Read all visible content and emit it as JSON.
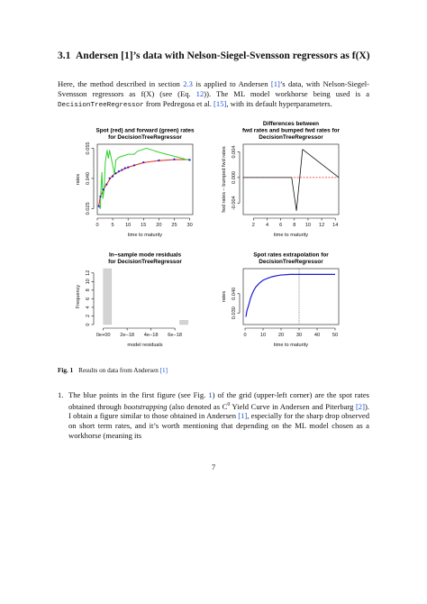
{
  "section": {
    "number": "3.1",
    "title": "Andersen [1]’s data with Nelson-Siegel-Svensson regressors as f(X)"
  },
  "intro": {
    "part1": "Here, the method described in section ",
    "sec_ref": "2.3",
    "part2": " is applied to Andersen ",
    "ref1": "[1]",
    "part3": "’s data, with Nelson-Siegel-Svensson regressors as f(X) (see (Eq. ",
    "eq_ref": "12",
    "part4": ")). The ML model workhorse being used is a ",
    "code": "DecisionTreeRegressor",
    "part5": " from Pedregosa et al. ",
    "ref2": "[15]",
    "part6": ", with its default hyperparameters."
  },
  "colors": {
    "link": "#1a4fd6",
    "red": "#e0231b",
    "green": "#2fd12f",
    "blue": "#1b1bd6",
    "gray": "#d3d3d3"
  },
  "chart_data": [
    {
      "type": "line",
      "title": "Spot (red) and forward (green) rates for DecisionTreeRegressor",
      "title_lines": [
        "Spot (red) and forward (green) rates",
        "for DecisionTreeRegressor"
      ],
      "xlabel": "time to maturity",
      "ylabel": "rates",
      "xlim": [
        0,
        31
      ],
      "ylim": [
        0.022,
        0.057
      ],
      "xticks": [
        "0",
        "5",
        "10",
        "15",
        "20",
        "25",
        "30"
      ],
      "yticks": [
        "0.025",
        "0.040",
        "0.055"
      ],
      "series": [
        {
          "name": "spot (red)",
          "x": [
            0.5,
            1,
            2,
            3,
            4,
            5,
            6,
            8,
            10,
            12,
            15,
            18,
            20,
            25,
            30
          ],
          "y": [
            0.0265,
            0.031,
            0.0345,
            0.037,
            0.0395,
            0.0415,
            0.0425,
            0.0442,
            0.0455,
            0.0465,
            0.0478,
            0.0485,
            0.0488,
            0.0494,
            0.0494
          ]
        },
        {
          "name": "forward (green)",
          "x": [
            0.5,
            1,
            1.2,
            1.5,
            1.8,
            2.2,
            2.6,
            3.2,
            3.6,
            4,
            4.4,
            4.8,
            5.2,
            5.6,
            6,
            7,
            8,
            10,
            12,
            13,
            16,
            18,
            20,
            25,
            30
          ],
          "y": [
            0.026,
            0.025,
            0.035,
            0.043,
            0.03,
            0.034,
            0.048,
            0.054,
            0.05,
            0.054,
            0.051,
            0.048,
            0.045,
            0.042,
            0.049,
            0.0505,
            0.051,
            0.052,
            0.052,
            0.0535,
            0.055,
            0.054,
            0.053,
            0.051,
            0.049
          ]
        },
        {
          "name": "spot points (blue)",
          "x": [
            0.5,
            1,
            2,
            3,
            4,
            5,
            6,
            7,
            8,
            9,
            10,
            12,
            15,
            20,
            25,
            30
          ],
          "y": [
            0.0262,
            0.031,
            0.0345,
            0.037,
            0.04,
            0.041,
            0.0425,
            0.0435,
            0.0442,
            0.0451,
            0.0455,
            0.0465,
            0.048,
            0.049,
            0.0495,
            0.0492
          ]
        }
      ]
    },
    {
      "type": "line",
      "title": "Differences between fwd rates and bumped fwd rates for DecisionTreeRegressor",
      "title_lines": [
        "Differences between",
        "fwd rates and bumped fwd rates for",
        "DecisionTreeRegressor"
      ],
      "xlabel": "time to maturity",
      "ylabel": "fwd rates – bumped fwd rates",
      "xlim": [
        0.5,
        14.5
      ],
      "ylim": [
        -0.0058,
        0.0052
      ],
      "xticks": [
        "2",
        "4",
        "6",
        "8",
        "10",
        "12",
        "14"
      ],
      "yticks": [
        "-0.004",
        "0.000",
        "0.004"
      ],
      "series": [
        {
          "name": "difference",
          "x": [
            0.5,
            7.6,
            8.3,
            9.2,
            14.5
          ],
          "y": [
            0,
            0,
            -0.0052,
            0.0044,
            0
          ]
        }
      ],
      "reference_line": {
        "y": 0,
        "style": "dashed",
        "color": "red"
      }
    },
    {
      "type": "bar",
      "title": "In−sample mode residuals for DecisionTreeRegressor",
      "title_lines": [
        "In−sample mode residuals",
        "for DecisionTreeRegressor"
      ],
      "xlabel": "model residuals",
      "ylabel": "Frequency",
      "xlim": [
        -5e-19,
        7.5e-18
      ],
      "ylim": [
        0,
        13
      ],
      "xticks": [
        "0e+00",
        "2e−18",
        "4e−18",
        "6e−18"
      ],
      "yticks": [
        "0",
        "2",
        "4",
        "6",
        "8",
        "10",
        "12"
      ],
      "bins": [
        {
          "from": 0,
          "to": 7e-19,
          "count": 13
        },
        {
          "from": 6.4e-18,
          "to": 7.1e-18,
          "count": 1
        }
      ]
    },
    {
      "type": "line",
      "title": "Spot rates extrapolation for DecisionTreeRegressor",
      "title_lines": [
        "Spot rates extrapolation for",
        "DecisionTreeRegressor"
      ],
      "xlabel": "time to maturity",
      "ylabel": "rates",
      "xlim": [
        -1,
        52
      ],
      "ylim": [
        0.024,
        0.053
      ],
      "xticks": [
        "0",
        "10",
        "20",
        "30",
        "40",
        "50"
      ],
      "yticks": [
        "0.030",
        "0.040"
      ],
      "series": [
        {
          "name": "spot rates",
          "x": [
            0.5,
            1,
            2,
            3,
            4,
            5,
            6,
            8,
            10,
            12,
            15,
            18,
            20,
            25,
            30,
            35,
            40,
            50
          ],
          "y": [
            0.028,
            0.031,
            0.034,
            0.0375,
            0.04,
            0.042,
            0.0435,
            0.0455,
            0.047,
            0.0478,
            0.0488,
            0.0494,
            0.0497,
            0.05,
            0.05,
            0.05,
            0.05,
            0.05
          ]
        }
      ],
      "vline": {
        "x": 30,
        "style": "dotted"
      }
    }
  ],
  "caption": {
    "label": "Fig. 1",
    "text": "Results on data from Andersen ",
    "ref": "[1]"
  },
  "list": {
    "number": "1.",
    "part1": "The blue points in the first figure (see Fig. ",
    "fig_ref": "1",
    "part2": ") of the grid (upper-left corner) are the spot rates obtained through ",
    "em": "bootstrapping",
    "part3": " (also denoted as C",
    "sup": "0",
    "part4": " Yield Curve in Andersen and Piterbarg ",
    "ref1": "[2]",
    "part5": "). I obtain a figure similar to those obtained in Andersen ",
    "ref2": "[1]",
    "part6": ", especially for the sharp drop observed on short term rates, and it’s worth mentioning that depending on the ML model chosen as a workhorse (meaning its"
  },
  "page_number": "7"
}
